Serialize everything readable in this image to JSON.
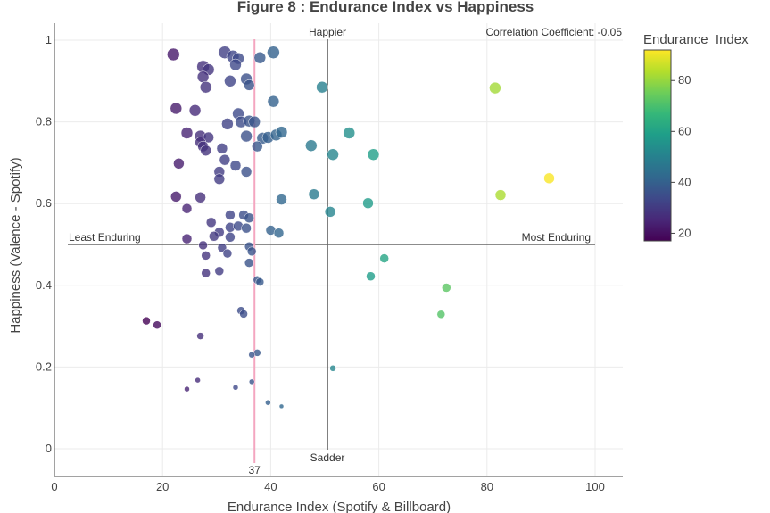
{
  "chart_data": {
    "type": "scatter",
    "title": "Figure 8 : Endurance Index vs Happiness",
    "xlabel": "Endurance Index (Spotify & Billboard)",
    "ylabel": "Happiness (Valence - Spotify)",
    "xlim": [
      0,
      106
    ],
    "ylim": [
      -0.02,
      1.03
    ],
    "xticks": [
      0,
      20,
      40,
      60,
      80,
      100
    ],
    "yticks": [
      0,
      0.2,
      0.4,
      0.6,
      0.8,
      1
    ],
    "ytick_labels": [
      "0",
      "0.2",
      "0.4",
      "0.6",
      "0.8",
      "1"
    ],
    "grid": true,
    "colorbar": {
      "title": "Endurance_Index",
      "range": [
        17,
        92
      ],
      "ticks": [
        20,
        40,
        60,
        80
      ],
      "colorscale": [
        "#440154",
        "#482878",
        "#3e4989",
        "#31688e",
        "#26828e",
        "#1f9e89",
        "#35b779",
        "#6ece58",
        "#b5de2b",
        "#fde725"
      ]
    },
    "reference_lines": {
      "happiness_line": 0.5,
      "endurance_line": 50.5,
      "average_line": 37,
      "average_color": "#f4a6c0",
      "average_label": "37"
    },
    "annotations": {
      "happier": "Happier",
      "sadder": "Sadder",
      "least": "Least Enduring",
      "most": "Most Enduring",
      "correlation": "Correlation Coefficient:  -0.05"
    },
    "points": [
      {
        "x": 22,
        "y": 0.965,
        "s": 14
      },
      {
        "x": 31.5,
        "y": 0.97,
        "s": 14
      },
      {
        "x": 33,
        "y": 0.96,
        "s": 14
      },
      {
        "x": 34,
        "y": 0.955,
        "s": 13
      },
      {
        "x": 33.5,
        "y": 0.94,
        "s": 13
      },
      {
        "x": 38,
        "y": 0.957,
        "s": 13
      },
      {
        "x": 40.5,
        "y": 0.97,
        "s": 14
      },
      {
        "x": 27.5,
        "y": 0.935,
        "s": 14
      },
      {
        "x": 28.5,
        "y": 0.928,
        "s": 13
      },
      {
        "x": 27.5,
        "y": 0.91,
        "s": 13
      },
      {
        "x": 32.5,
        "y": 0.9,
        "s": 13
      },
      {
        "x": 35.5,
        "y": 0.905,
        "s": 13
      },
      {
        "x": 28,
        "y": 0.885,
        "s": 13
      },
      {
        "x": 36,
        "y": 0.89,
        "s": 12
      },
      {
        "x": 49.5,
        "y": 0.885,
        "s": 13
      },
      {
        "x": 81.5,
        "y": 0.883,
        "s": 13
      },
      {
        "x": 40.5,
        "y": 0.85,
        "s": 13
      },
      {
        "x": 22.5,
        "y": 0.833,
        "s": 13
      },
      {
        "x": 26,
        "y": 0.828,
        "s": 13
      },
      {
        "x": 34,
        "y": 0.82,
        "s": 13
      },
      {
        "x": 32,
        "y": 0.795,
        "s": 13
      },
      {
        "x": 34.5,
        "y": 0.8,
        "s": 13
      },
      {
        "x": 36,
        "y": 0.802,
        "s": 13
      },
      {
        "x": 37,
        "y": 0.8,
        "s": 13
      },
      {
        "x": 24.5,
        "y": 0.773,
        "s": 13
      },
      {
        "x": 27,
        "y": 0.765,
        "s": 13
      },
      {
        "x": 28.5,
        "y": 0.762,
        "s": 12
      },
      {
        "x": 35.5,
        "y": 0.765,
        "s": 13
      },
      {
        "x": 38.5,
        "y": 0.76,
        "s": 13
      },
      {
        "x": 39.5,
        "y": 0.762,
        "s": 13
      },
      {
        "x": 41,
        "y": 0.768,
        "s": 13
      },
      {
        "x": 42,
        "y": 0.775,
        "s": 13
      },
      {
        "x": 54.5,
        "y": 0.773,
        "s": 13
      },
      {
        "x": 27,
        "y": 0.75,
        "s": 12
      },
      {
        "x": 27.5,
        "y": 0.74,
        "s": 12
      },
      {
        "x": 28,
        "y": 0.73,
        "s": 12
      },
      {
        "x": 31,
        "y": 0.735,
        "s": 12
      },
      {
        "x": 37.5,
        "y": 0.74,
        "s": 12
      },
      {
        "x": 47.5,
        "y": 0.742,
        "s": 13
      },
      {
        "x": 51.5,
        "y": 0.72,
        "s": 13
      },
      {
        "x": 59,
        "y": 0.72,
        "s": 13
      },
      {
        "x": 31.5,
        "y": 0.707,
        "s": 12
      },
      {
        "x": 23,
        "y": 0.698,
        "s": 12
      },
      {
        "x": 33.5,
        "y": 0.693,
        "s": 12
      },
      {
        "x": 30.5,
        "y": 0.678,
        "s": 12
      },
      {
        "x": 35.5,
        "y": 0.678,
        "s": 12
      },
      {
        "x": 30.5,
        "y": 0.66,
        "s": 12
      },
      {
        "x": 91.5,
        "y": 0.662,
        "s": 12
      },
      {
        "x": 22.5,
        "y": 0.617,
        "s": 12
      },
      {
        "x": 27,
        "y": 0.615,
        "s": 12
      },
      {
        "x": 48,
        "y": 0.623,
        "s": 12
      },
      {
        "x": 82.5,
        "y": 0.621,
        "s": 12
      },
      {
        "x": 42,
        "y": 0.61,
        "s": 12
      },
      {
        "x": 58,
        "y": 0.601,
        "s": 12
      },
      {
        "x": 24.5,
        "y": 0.588,
        "s": 11
      },
      {
        "x": 51,
        "y": 0.58,
        "s": 12
      },
      {
        "x": 32.5,
        "y": 0.572,
        "s": 11
      },
      {
        "x": 35,
        "y": 0.572,
        "s": 11
      },
      {
        "x": 36,
        "y": 0.565,
        "s": 11
      },
      {
        "x": 29,
        "y": 0.554,
        "s": 11
      },
      {
        "x": 32.5,
        "y": 0.542,
        "s": 11
      },
      {
        "x": 34,
        "y": 0.545,
        "s": 11
      },
      {
        "x": 35.5,
        "y": 0.54,
        "s": 11
      },
      {
        "x": 40,
        "y": 0.535,
        "s": 11
      },
      {
        "x": 41.5,
        "y": 0.528,
        "s": 11
      },
      {
        "x": 30.5,
        "y": 0.53,
        "s": 11
      },
      {
        "x": 29.5,
        "y": 0.52,
        "s": 11
      },
      {
        "x": 32.5,
        "y": 0.518,
        "s": 11
      },
      {
        "x": 24.5,
        "y": 0.514,
        "s": 11
      },
      {
        "x": 36,
        "y": 0.495,
        "s": 10
      },
      {
        "x": 27.5,
        "y": 0.498,
        "s": 10
      },
      {
        "x": 31,
        "y": 0.492,
        "s": 10
      },
      {
        "x": 36.5,
        "y": 0.483,
        "s": 10
      },
      {
        "x": 32,
        "y": 0.478,
        "s": 10
      },
      {
        "x": 28,
        "y": 0.473,
        "s": 10
      },
      {
        "x": 61,
        "y": 0.466,
        "s": 10
      },
      {
        "x": 36,
        "y": 0.455,
        "s": 10
      },
      {
        "x": 30.5,
        "y": 0.435,
        "s": 10
      },
      {
        "x": 28,
        "y": 0.43,
        "s": 10
      },
      {
        "x": 58.5,
        "y": 0.422,
        "s": 10
      },
      {
        "x": 37.5,
        "y": 0.413,
        "s": 9
      },
      {
        "x": 38,
        "y": 0.408,
        "s": 9
      },
      {
        "x": 72.5,
        "y": 0.394,
        "s": 10
      },
      {
        "x": 34.5,
        "y": 0.338,
        "s": 9
      },
      {
        "x": 35,
        "y": 0.33,
        "s": 9
      },
      {
        "x": 71.5,
        "y": 0.329,
        "s": 9
      },
      {
        "x": 17,
        "y": 0.313,
        "s": 9
      },
      {
        "x": 19,
        "y": 0.303,
        "s": 9
      },
      {
        "x": 27,
        "y": 0.276,
        "s": 8
      },
      {
        "x": 37.5,
        "y": 0.235,
        "s": 8
      },
      {
        "x": 36.5,
        "y": 0.23,
        "s": 7
      },
      {
        "x": 51.5,
        "y": 0.197,
        "s": 7
      },
      {
        "x": 26.5,
        "y": 0.168,
        "s": 6
      },
      {
        "x": 36.5,
        "y": 0.164,
        "s": 6
      },
      {
        "x": 33.5,
        "y": 0.15,
        "s": 6
      },
      {
        "x": 24.5,
        "y": 0.146,
        "s": 6
      },
      {
        "x": 39.5,
        "y": 0.113,
        "s": 6
      },
      {
        "x": 42,
        "y": 0.104,
        "s": 5
      }
    ]
  }
}
